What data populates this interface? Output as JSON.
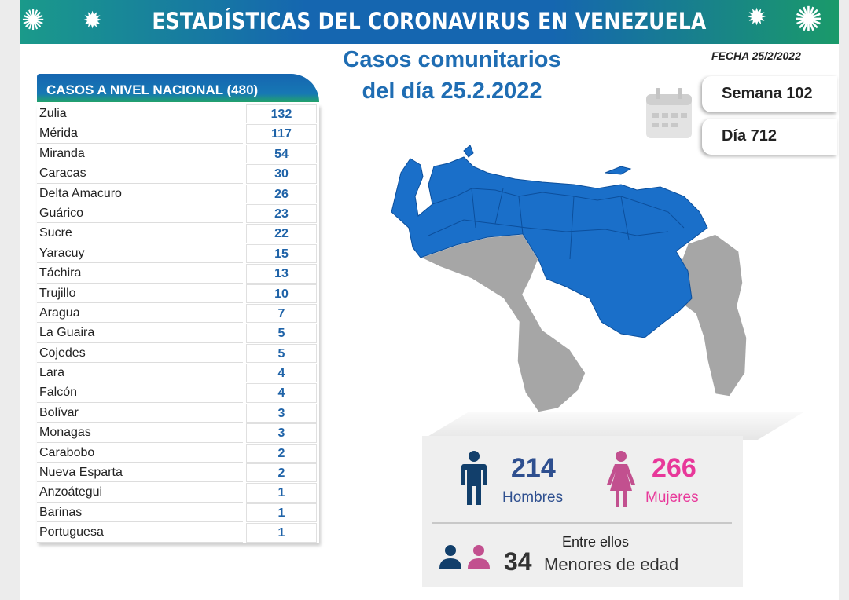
{
  "header": {
    "title": "ESTADÍSTICAS DEL CORONAVIRUS EN VENEZUELA",
    "date": "FECHA 25/2/2022"
  },
  "main": {
    "title_line1": "Casos comunitarios",
    "title_line2": "del día 25.2.2022"
  },
  "week": "Semana 102",
  "day": "Día 712",
  "table": {
    "header": "CASOS A NIVEL NACIONAL  (480)",
    "rows": [
      {
        "state": "Zulia",
        "cases": "132"
      },
      {
        "state": "Mérida",
        "cases": "117"
      },
      {
        "state": "Miranda",
        "cases": "54"
      },
      {
        "state": "Caracas",
        "cases": "30"
      },
      {
        "state": "Delta Amacuro",
        "cases": "26"
      },
      {
        "state": "Guárico",
        "cases": "23"
      },
      {
        "state": "Sucre",
        "cases": "22"
      },
      {
        "state": "Yaracuy",
        "cases": "15"
      },
      {
        "state": "Táchira",
        "cases": "13"
      },
      {
        "state": "Trujillo",
        "cases": "10"
      },
      {
        "state": "Aragua",
        "cases": "7"
      },
      {
        "state": "La Guaira",
        "cases": "5"
      },
      {
        "state": "Cojedes",
        "cases": "5"
      },
      {
        "state": "Lara",
        "cases": "4"
      },
      {
        "state": "Falcón",
        "cases": "4"
      },
      {
        "state": "Bolívar",
        "cases": "3"
      },
      {
        "state": "Monagas",
        "cases": "3"
      },
      {
        "state": "Carabobo",
        "cases": "2"
      },
      {
        "state": "Nueva Esparta",
        "cases": "2"
      },
      {
        "state": "Anzoátegui",
        "cases": "1"
      },
      {
        "state": "Barinas",
        "cases": "1"
      },
      {
        "state": "Portuguesa",
        "cases": "1"
      }
    ]
  },
  "stats": {
    "men": "214",
    "men_label": "Hombres",
    "women": "266",
    "women_label": "Mujeres",
    "among": "Entre ellos",
    "minors": "34",
    "minors_label": "Menores de edad"
  },
  "colors": {
    "men": "#2e4f8f",
    "women": "#e8389a",
    "map_affected": "#1a6fc9",
    "map_unaffected": "#a6a6a6",
    "accent": "#1f6db3"
  }
}
